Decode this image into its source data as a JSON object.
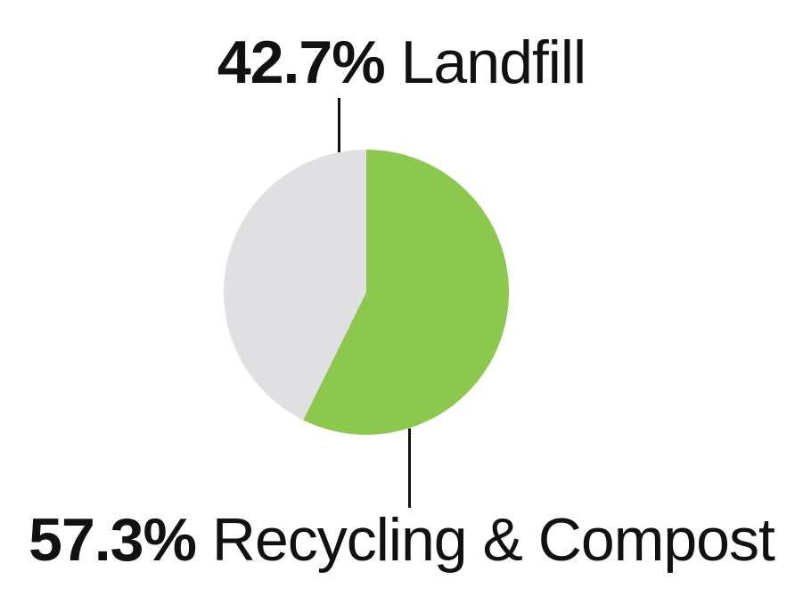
{
  "chart_data": {
    "type": "pie",
    "title": "",
    "slices": [
      {
        "name": "Recycling & Compost",
        "value": 57.3,
        "pct_label": "57.3%",
        "color": "#8cc74e"
      },
      {
        "name": "Landfill",
        "value": 42.7,
        "pct_label": "42.7%",
        "color": "#e0e0e2"
      }
    ],
    "start_angle_deg": 0,
    "direction": "clockwise",
    "legend_position": "callout-labels-top-and-bottom"
  },
  "colors": {
    "background": "#ffffff",
    "text": "#111111",
    "connector": "#111111",
    "recycling_green": "#8cc74e",
    "landfill_gray": "#e0e0e2"
  }
}
